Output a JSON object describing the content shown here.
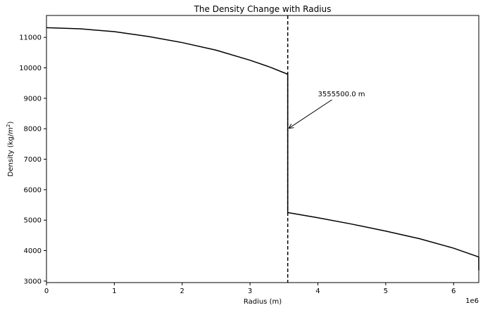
{
  "chart_data": {
    "type": "line",
    "title": "The Density Change with Radius",
    "xlabel": "Radius (m)",
    "ylabel_main": "Density (kg/",
    "ylabel_unit": "m",
    "ylabel_exp": "2",
    "ylabel_close": ")",
    "x_offset_label": "1e6",
    "xlim": [
      0,
      6371000
    ],
    "ylim": [
      2950,
      11720
    ],
    "xticks": [
      0,
      1000000,
      2000000,
      3000000,
      4000000,
      5000000,
      6000000
    ],
    "xtick_labels": [
      "0",
      "1",
      "2",
      "3",
      "4",
      "5",
      "6"
    ],
    "yticks": [
      3000,
      4000,
      5000,
      6000,
      7000,
      8000,
      9000,
      10000,
      11000
    ],
    "ytick_labels": [
      "3000",
      "4000",
      "5000",
      "6000",
      "7000",
      "8000",
      "9000",
      "10000",
      "11000"
    ],
    "grid": false,
    "series": [
      {
        "line_color": "#000000",
        "x": [
          0,
          500000,
          1000000,
          1500000,
          2000000,
          2500000,
          3000000,
          3300000,
          3555500,
          3555500,
          3555500,
          4000000,
          4500000,
          5000000,
          5500000,
          6000000,
          6371000,
          6371000
        ],
        "y": [
          11320,
          11280,
          11190,
          11030,
          10830,
          10580,
          10250,
          10020,
          9790,
          9790,
          5250,
          5080,
          4870,
          4640,
          4390,
          4080,
          3790,
          3350
        ]
      }
    ],
    "vline": {
      "x": 3555500,
      "style": "dashed",
      "color": "#000000"
    },
    "annotation": {
      "text": "3555500.0 m",
      "point": {
        "x": 3555500,
        "y": 8000
      },
      "text_pos": {
        "x": 4000000,
        "y": 9000
      }
    }
  }
}
